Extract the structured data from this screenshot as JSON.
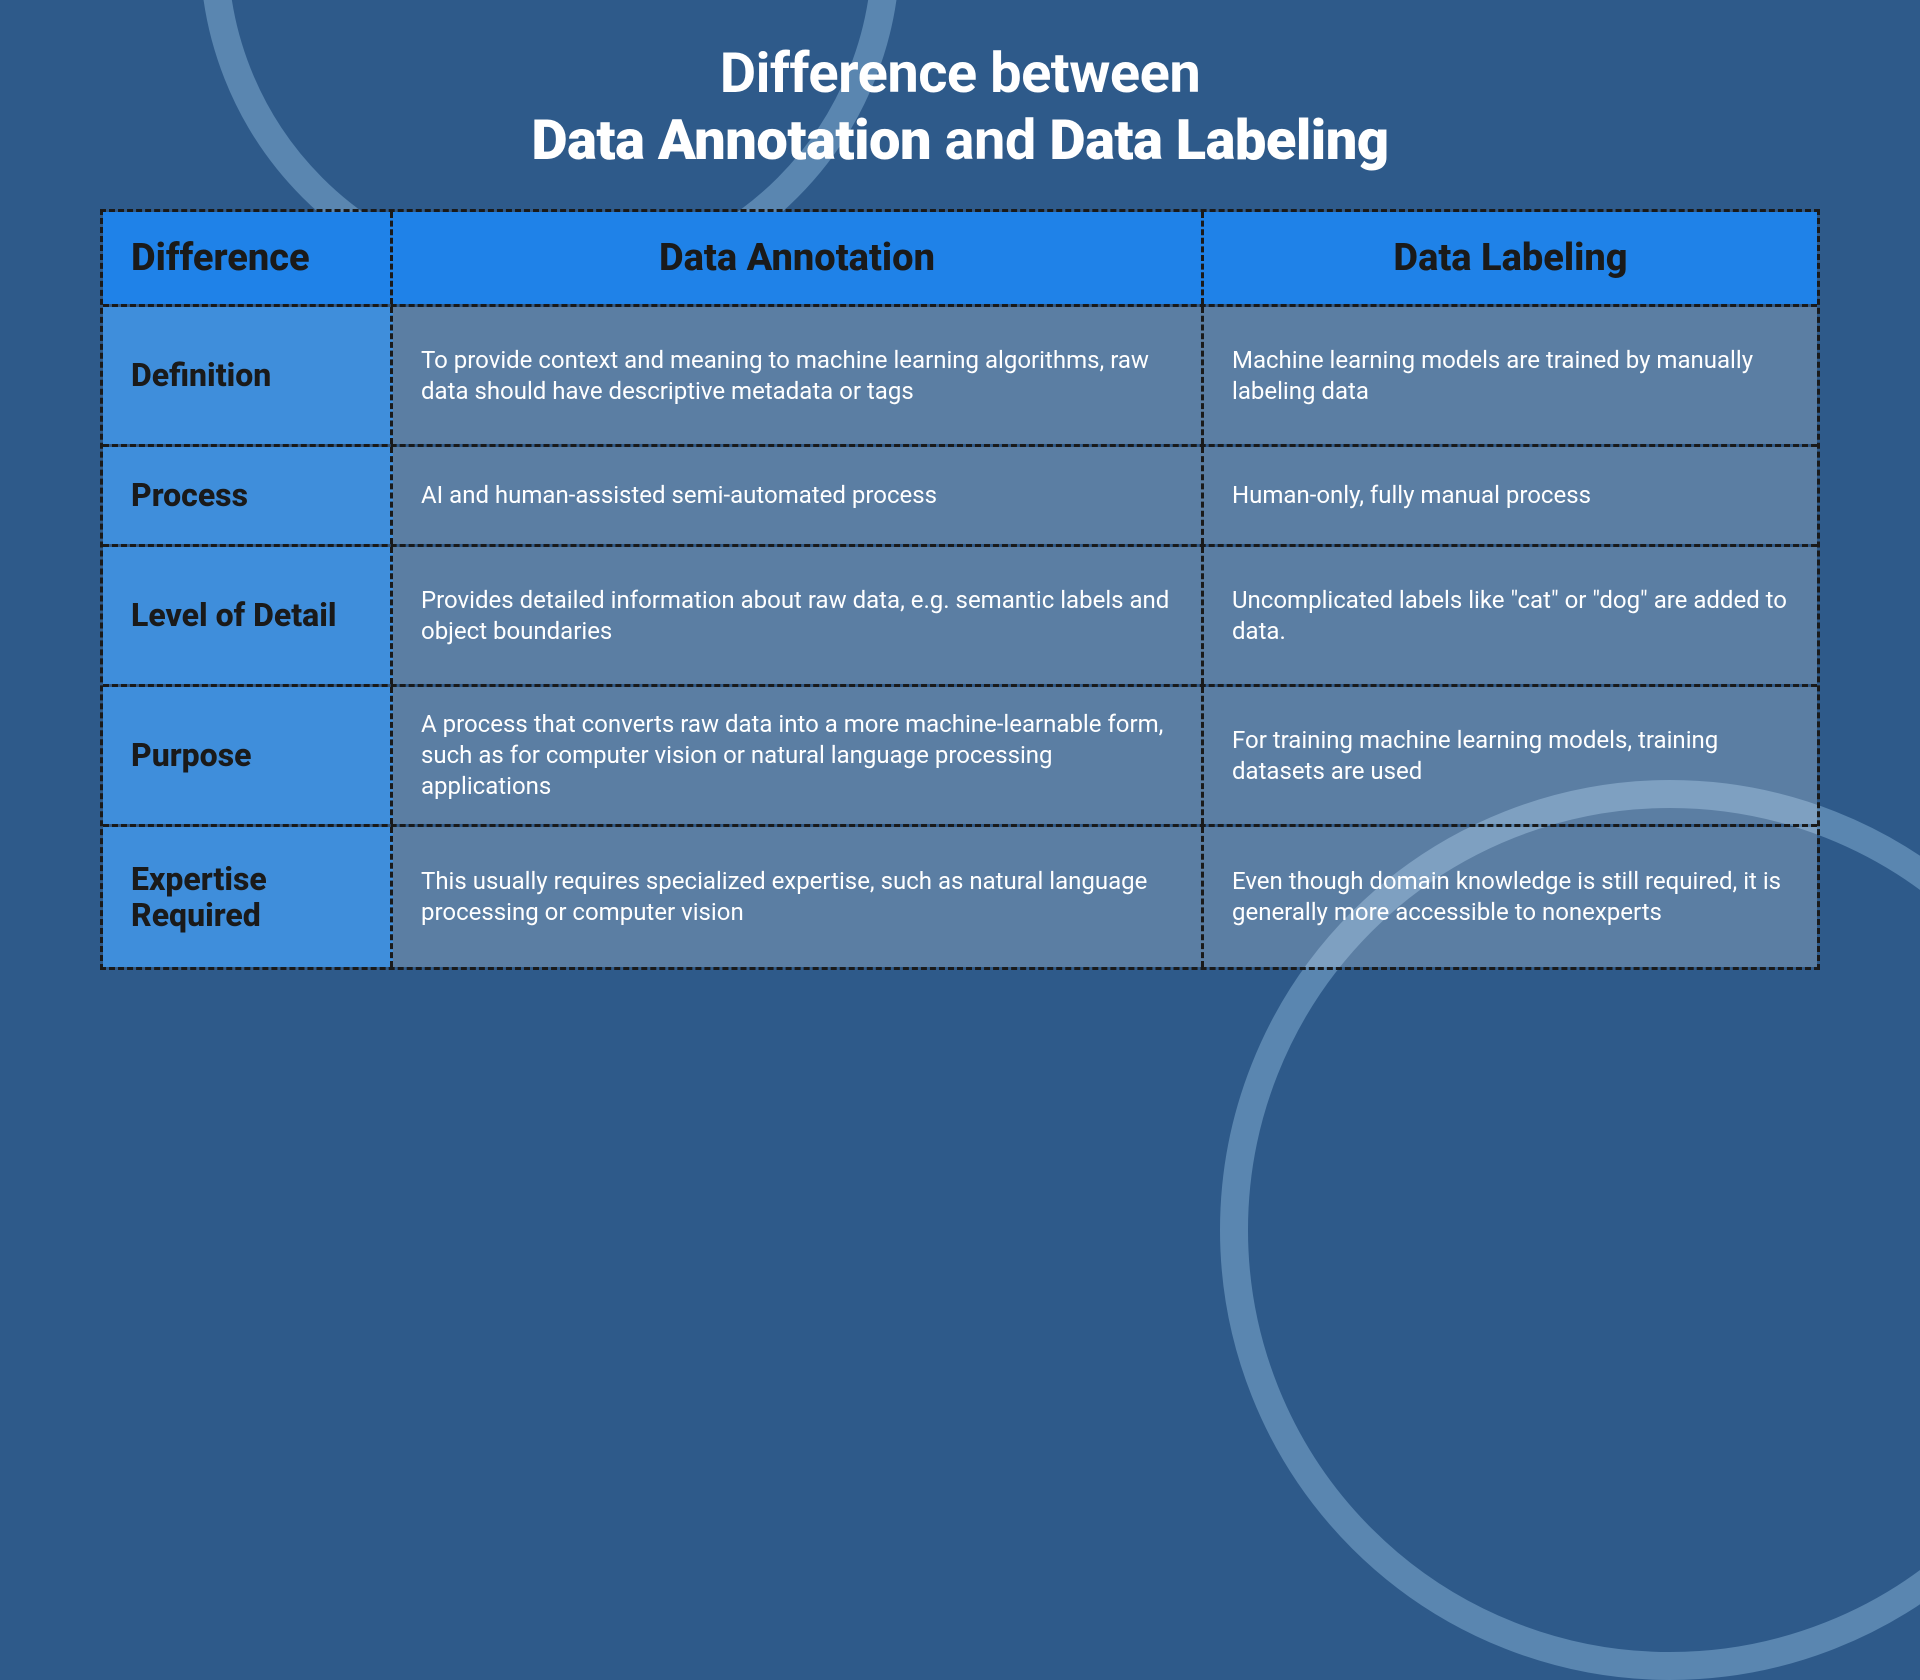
{
  "colors": {
    "page_bg": "#2e5a8a",
    "arc": "#5a86b0",
    "header_bg": "#1f82e8",
    "row_label_bg": "#3f8edb",
    "body_cell_bg": "rgba(255,255,255,0.22)",
    "dark_text": "#1a1a1a",
    "light_text": "#ffffff",
    "dash_border": "#1a1a1a"
  },
  "typography": {
    "title_fontsize": 56,
    "header_fontsize": 38,
    "row_label_fontsize": 32,
    "body_fontsize": 24
  },
  "title": {
    "line1_pre": "Difference between",
    "line2_b1": "Data Annotation",
    "line2_mid": " and ",
    "line2_b2": "Data Labeling"
  },
  "table": {
    "type": "table",
    "columns": [
      "Difference",
      "Data Annotation",
      "Data Labeling"
    ],
    "rows": [
      {
        "label": "Definition",
        "annotation": "To provide context and meaning to machine learning algorithms, raw data should have descriptive metadata or tags",
        "labeling": "Machine learning models are trained by manually labeling data"
      },
      {
        "label": "Process",
        "annotation": "AI and human-assisted semi-automated process",
        "labeling": "Human-only, fully manual process"
      },
      {
        "label": "Level of Detail",
        "annotation": "Provides detailed information about raw data, e.g. semantic labels and object boundaries",
        "labeling": "Uncomplicated labels like \"cat\" or \"dog\" are added to data."
      },
      {
        "label": "Purpose",
        "annotation": "A process that converts raw data into a more machine-learnable form, such as for computer vision or natural language processing applications",
        "labeling": "For training machine learning models, training datasets are used"
      },
      {
        "label": "Expertise Required",
        "annotation": "This usually requires specialized expertise, such as natural language processing or computer vision",
        "labeling": "Even though domain knowledge is still required, it is generally more accessible to nonexperts"
      }
    ]
  }
}
